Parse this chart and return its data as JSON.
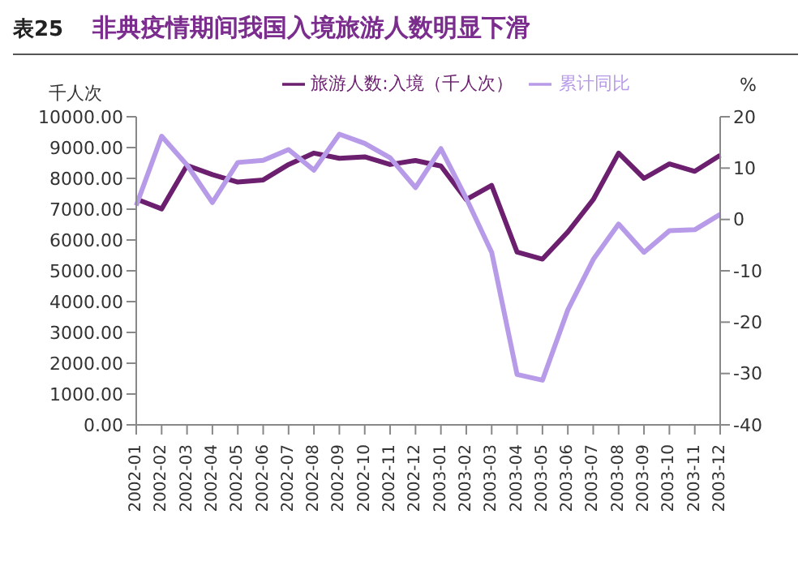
{
  "chart_data": {
    "type": "line",
    "title": "表25",
    "subtitle": "非典疫情期间我国入境旅游人数明显下滑",
    "ylabel": "千人次",
    "y2label": "%",
    "categories": [
      "2002-01",
      "2002-02",
      "2002-03",
      "2002-04",
      "2002-05",
      "2002-06",
      "2002-07",
      "2002-08",
      "2002-09",
      "2002-10",
      "2002-11",
      "2002-12",
      "2003-01",
      "2003-02",
      "2003-03",
      "2003-04",
      "2003-05",
      "2003-06",
      "2003-07",
      "2003-08",
      "2003-09",
      "2003-10",
      "2003-11",
      "2003-12"
    ],
    "series": [
      {
        "name": "旅游人数:入境（千人次）",
        "color": "#6b1f6e",
        "values": [
          7330,
          7010,
          8420,
          8120,
          7880,
          7950,
          8450,
          8820,
          8650,
          8700,
          8450,
          8580,
          8400,
          7310,
          7770,
          5610,
          5380,
          6260,
          7310,
          8820,
          8000,
          8470,
          8230,
          8750
        ]
      },
      {
        "name": "累计同比",
        "color": "#b89be8",
        "axis": "y2",
        "values": [
          2.7,
          16.2,
          10.6,
          3.3,
          11.1,
          11.5,
          13.6,
          9.6,
          16.6,
          14.8,
          12,
          6.2,
          13.8,
          4.1,
          -6.4,
          -30.2,
          -31.3,
          -17.6,
          -7.8,
          -0.9,
          -6.4,
          -2.2,
          -2,
          1
        ]
      }
    ],
    "ylim": [
      0,
      10000
    ],
    "yticks": [
      {
        "value": 0,
        "label": "0.00"
      },
      {
        "value": 1000,
        "label": "1000.00"
      },
      {
        "value": 2000,
        "label": "2000.00"
      },
      {
        "value": 3000,
        "label": "3000.00"
      },
      {
        "value": 4000,
        "label": "4000.00"
      },
      {
        "value": 5000,
        "label": "5000.00"
      },
      {
        "value": 6000,
        "label": "6000.00"
      },
      {
        "value": 7000,
        "label": "7000.00"
      },
      {
        "value": 8000,
        "label": "8000.00"
      },
      {
        "value": 9000,
        "label": "9000.00"
      },
      {
        "value": 10000,
        "label": "10000.00"
      }
    ],
    "y2lim": [
      -40,
      20
    ],
    "y2ticks": [
      -40,
      -30,
      -20,
      -10,
      0,
      10,
      20
    ],
    "grid": false,
    "legend": "top",
    "marker": "none",
    "line_style": "solid"
  }
}
